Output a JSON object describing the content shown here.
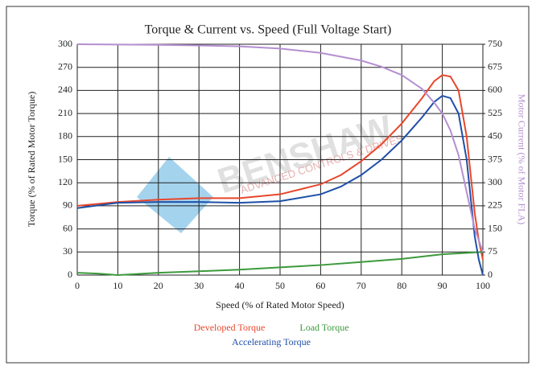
{
  "chart_data": {
    "type": "line",
    "title": "Torque & Current vs. Speed (Full Voltage Start)",
    "x_label": "Speed (% of Rated Motor Speed)",
    "y_label": "Torque (% of Rated Motor Torque)",
    "y2_label": "Motor Current (% of Motor FLA)",
    "watermark": [
      "BENSHAW",
      "ADVANCED CONTROLS & DRIVES"
    ],
    "xlim": [
      0,
      100
    ],
    "xticks": [
      0,
      10,
      20,
      30,
      40,
      50,
      60,
      70,
      80,
      90,
      100
    ],
    "ylim": [
      0,
      300
    ],
    "yticks": [
      0,
      30,
      60,
      90,
      120,
      150,
      180,
      210,
      240,
      270,
      300
    ],
    "y2lim": [
      0,
      750
    ],
    "y2ticks": [
      0,
      75,
      150,
      225,
      300,
      375,
      450,
      525,
      600,
      675,
      750
    ],
    "grid": true,
    "series": [
      {
        "name": "Developed Torque",
        "color": "#e8472c",
        "x": [
          0,
          10,
          20,
          30,
          40,
          50,
          60,
          65,
          70,
          75,
          80,
          85,
          88,
          90,
          92,
          94,
          96,
          98,
          99,
          100
        ],
        "values": [
          90,
          95,
          98,
          100,
          100,
          105,
          118,
          130,
          148,
          170,
          197,
          230,
          252,
          260,
          258,
          240,
          180,
          80,
          45,
          20
        ]
      },
      {
        "name": "Load Torque",
        "color": "#3c9a3c",
        "x": [
          0,
          5,
          10,
          20,
          30,
          40,
          50,
          60,
          70,
          80,
          90,
          100
        ],
        "values": [
          3,
          2,
          0,
          3,
          5,
          7,
          10,
          13,
          17,
          21,
          27,
          30
        ]
      },
      {
        "name": "Accelerating Torque",
        "color": "#1f4fa8",
        "x": [
          0,
          10,
          20,
          30,
          40,
          50,
          60,
          65,
          70,
          75,
          80,
          85,
          88,
          90,
          92,
          94,
          96,
          98,
          99,
          100
        ],
        "values": [
          87,
          94,
          95,
          95,
          94,
          96,
          105,
          115,
          130,
          150,
          175,
          205,
          225,
          233,
          230,
          210,
          150,
          50,
          20,
          0
        ]
      },
      {
        "name": null,
        "color": "#b48fd0",
        "axis": "y2",
        "x": [
          0,
          10,
          20,
          30,
          40,
          50,
          60,
          70,
          75,
          80,
          85,
          88,
          90,
          92,
          94,
          96,
          98,
          100
        ],
        "values": [
          750,
          749,
          748,
          746,
          743,
          736,
          722,
          697,
          677,
          650,
          605,
          560,
          525,
          470,
          390,
          270,
          150,
          75
        ]
      }
    ]
  }
}
